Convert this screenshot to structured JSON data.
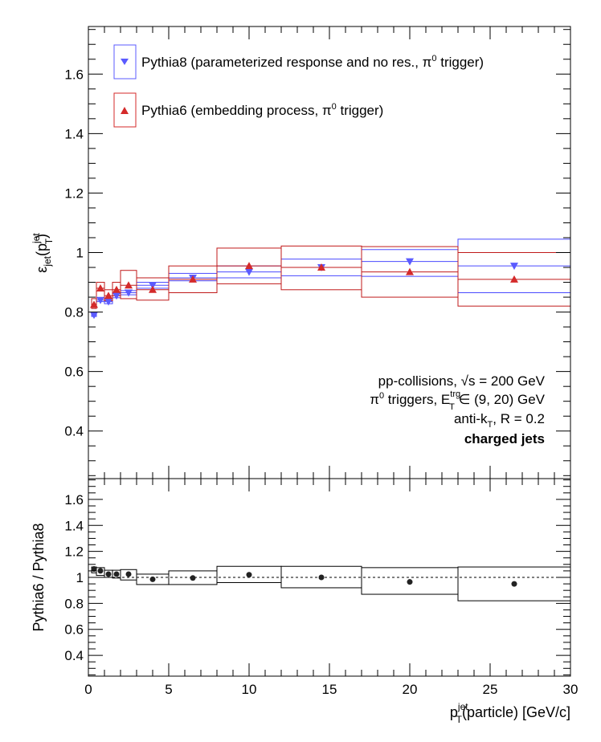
{
  "chart_data": {
    "type": "scatter",
    "x_axis": {
      "range": [
        0,
        30
      ],
      "ticks": [
        "0",
        "5",
        "10",
        "15",
        "20",
        "25",
        "30"
      ],
      "label": {
        "base": "p",
        "sup": "jet",
        "sub": "T",
        "rest": "(particle) [GeV/c]"
      }
    },
    "top_panel": {
      "ylabel": {
        "base": "ε",
        "sub": "jet",
        "rest": "(p",
        "rest_sup": "jet",
        "rest_sub": "T",
        "close": ")"
      },
      "ylim": [
        0.24,
        1.76
      ],
      "yticks": [
        "0.4",
        "0.6",
        "0.8",
        "1",
        "1.2",
        "1.4",
        "1.6"
      ],
      "ytick_values": [
        0.4,
        0.6,
        0.8,
        1.0,
        1.2,
        1.4,
        1.6
      ],
      "legend": [
        {
          "prefix": "Pythia8 (parameterized response and no res., π",
          "sup": "0",
          "suffix": " trigger)"
        },
        {
          "prefix": "Pythia6 (embedding process, π",
          "sup": "0",
          "suffix": " trigger)"
        }
      ],
      "annotations": {
        "line1_prefix": "pp-collisions, ",
        "line1_sqrt": "√s",
        "line1_suffix": " = 200 GeV",
        "line2_prefix": "π",
        "line2_sup0": "0",
        "line2_mid": " triggers, E",
        "line2_sup": "trg",
        "line2_sub": "T",
        "line2_suffix": " ∈ (9, 20) GeV",
        "line3_prefix": "anti-k",
        "line3_sub": "T",
        "line3_suffix": ", R = 0.2",
        "line4": "charged jets"
      },
      "series": [
        {
          "name": "Pythia8",
          "color": "#5b5bff",
          "box_color": "#4a4aff",
          "marker": "triangle-down",
          "points": [
            {
              "x": 0.35,
              "y": 0.79,
              "xlo": 0.2,
              "xhi": 0.5,
              "blo": 0.785,
              "bhi": 0.795
            },
            {
              "x": 0.75,
              "y": 0.84,
              "xlo": 0.5,
              "xhi": 1.0,
              "blo": 0.835,
              "bhi": 0.848
            },
            {
              "x": 1.25,
              "y": 0.835,
              "xlo": 1.0,
              "xhi": 1.5,
              "blo": 0.828,
              "bhi": 0.843
            },
            {
              "x": 1.75,
              "y": 0.855,
              "xlo": 1.5,
              "xhi": 2.0,
              "blo": 0.848,
              "bhi": 0.862
            },
            {
              "x": 2.5,
              "y": 0.865,
              "xlo": 2.0,
              "xhi": 3.0,
              "blo": 0.858,
              "bhi": 0.872
            },
            {
              "x": 4.0,
              "y": 0.89,
              "xlo": 3.0,
              "xhi": 5.0,
              "blo": 0.88,
              "bhi": 0.9
            },
            {
              "x": 6.5,
              "y": 0.915,
              "xlo": 5.0,
              "xhi": 8.0,
              "blo": 0.905,
              "bhi": 0.93
            },
            {
              "x": 10.0,
              "y": 0.935,
              "xlo": 8.0,
              "xhi": 12.0,
              "blo": 0.915,
              "bhi": 0.955
            },
            {
              "x": 14.5,
              "y": 0.95,
              "xlo": 12.0,
              "xhi": 17.0,
              "blo": 0.922,
              "bhi": 0.978
            },
            {
              "x": 20.0,
              "y": 0.97,
              "xlo": 17.0,
              "xhi": 23.0,
              "blo": 0.92,
              "bhi": 1.01
            },
            {
              "x": 26.5,
              "y": 0.955,
              "xlo": 23.0,
              "xhi": 30.0,
              "blo": 0.865,
              "bhi": 1.045
            }
          ]
        },
        {
          "name": "Pythia6",
          "color": "#d42a2a",
          "box_color": "#c01a1a",
          "marker": "triangle-up",
          "points": [
            {
              "x": 0.35,
              "y": 0.825,
              "xlo": 0.2,
              "xhi": 0.5,
              "blo": 0.812,
              "bhi": 0.845
            },
            {
              "x": 0.75,
              "y": 0.88,
              "xlo": 0.5,
              "xhi": 1.0,
              "blo": 0.848,
              "bhi": 0.9
            },
            {
              "x": 1.25,
              "y": 0.855,
              "xlo": 1.0,
              "xhi": 1.5,
              "blo": 0.838,
              "bhi": 0.875
            },
            {
              "x": 1.75,
              "y": 0.875,
              "xlo": 1.5,
              "xhi": 2.0,
              "blo": 0.855,
              "bhi": 0.9
            },
            {
              "x": 2.5,
              "y": 0.89,
              "xlo": 2.0,
              "xhi": 3.0,
              "blo": 0.845,
              "bhi": 0.94
            },
            {
              "x": 4.0,
              "y": 0.875,
              "xlo": 3.0,
              "xhi": 5.0,
              "blo": 0.84,
              "bhi": 0.915
            },
            {
              "x": 6.5,
              "y": 0.91,
              "xlo": 5.0,
              "xhi": 8.0,
              "blo": 0.865,
              "bhi": 0.955
            },
            {
              "x": 10.0,
              "y": 0.955,
              "xlo": 8.0,
              "xhi": 12.0,
              "blo": 0.895,
              "bhi": 1.015
            },
            {
              "x": 14.5,
              "y": 0.95,
              "xlo": 12.0,
              "xhi": 17.0,
              "blo": 0.875,
              "bhi": 1.022
            },
            {
              "x": 20.0,
              "y": 0.935,
              "xlo": 17.0,
              "xhi": 23.0,
              "blo": 0.85,
              "bhi": 1.02
            },
            {
              "x": 26.5,
              "y": 0.91,
              "xlo": 23.0,
              "xhi": 30.0,
              "blo": 0.82,
              "bhi": 1.0
            }
          ]
        }
      ]
    },
    "bottom_panel": {
      "ylabel": "Pythia6 / Pythia8",
      "ylim": [
        0.24,
        1.76
      ],
      "yticks": [
        "0.4",
        "0.6",
        "0.8",
        "1",
        "1.2",
        "1.4",
        "1.6"
      ],
      "ytick_values": [
        0.4,
        0.6,
        0.8,
        1.0,
        1.2,
        1.4,
        1.6
      ],
      "reference_line": 1.0,
      "series": [
        {
          "name": "Pythia6 / Pythia8",
          "color": "#222222",
          "points": [
            {
              "x": 0.35,
              "y": 1.065,
              "xlo": 0.2,
              "xhi": 0.5,
              "blo": 1.035,
              "bhi": 1.08
            },
            {
              "x": 0.75,
              "y": 1.05,
              "xlo": 0.5,
              "xhi": 1.0,
              "blo": 1.015,
              "bhi": 1.075
            },
            {
              "x": 1.25,
              "y": 1.025,
              "xlo": 1.0,
              "xhi": 1.5,
              "blo": 1.0,
              "bhi": 1.055
            },
            {
              "x": 1.75,
              "y": 1.025,
              "xlo": 1.5,
              "xhi": 2.0,
              "blo": 0.995,
              "bhi": 1.055
            },
            {
              "x": 2.5,
              "y": 1.025,
              "xlo": 2.0,
              "xhi": 3.0,
              "blo": 0.98,
              "bhi": 1.06
            },
            {
              "x": 4.0,
              "y": 0.985,
              "xlo": 3.0,
              "xhi": 5.0,
              "blo": 0.945,
              "bhi": 1.025
            },
            {
              "x": 6.5,
              "y": 0.995,
              "xlo": 5.0,
              "xhi": 8.0,
              "blo": 0.945,
              "bhi": 1.05
            },
            {
              "x": 10.0,
              "y": 1.02,
              "xlo": 8.0,
              "xhi": 12.0,
              "blo": 0.96,
              "bhi": 1.085
            },
            {
              "x": 14.5,
              "y": 1.0,
              "xlo": 12.0,
              "xhi": 17.0,
              "blo": 0.92,
              "bhi": 1.085
            },
            {
              "x": 20.0,
              "y": 0.965,
              "xlo": 17.0,
              "xhi": 23.0,
              "blo": 0.87,
              "bhi": 1.075
            },
            {
              "x": 26.5,
              "y": 0.95,
              "xlo": 23.0,
              "xhi": 30.0,
              "blo": 0.82,
              "bhi": 1.08
            }
          ]
        }
      ]
    }
  }
}
